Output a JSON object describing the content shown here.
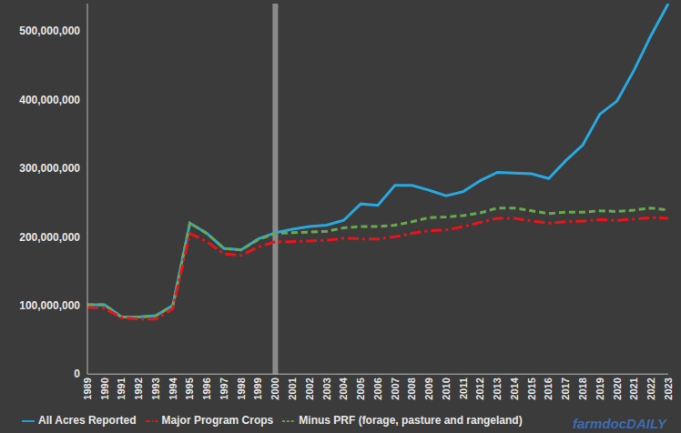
{
  "chart_data": {
    "type": "line",
    "categories": [
      "1989",
      "1990",
      "1991",
      "1992",
      "1993",
      "1994",
      "1995",
      "1996",
      "1997",
      "1998",
      "1999",
      "2000",
      "2001",
      "2002",
      "2003",
      "2004",
      "2005",
      "2006",
      "2007",
      "2008",
      "2009",
      "2010",
      "2011",
      "2012",
      "2013",
      "2014",
      "2015",
      "2016",
      "2017",
      "2018",
      "2019",
      "2020",
      "2021",
      "2022",
      "2023"
    ],
    "series": [
      {
        "name": "All Acres Reported",
        "color": "#29a8e0",
        "line_style": "solid",
        "values": [
          101000000,
          101000000,
          83000000,
          83000000,
          85000000,
          100000000,
          220000000,
          205000000,
          183000000,
          181000000,
          197000000,
          206000000,
          211000000,
          215000000,
          217000000,
          224000000,
          248000000,
          246000000,
          275000000,
          275000000,
          268000000,
          260000000,
          266000000,
          282000000,
          294000000,
          293000000,
          292000000,
          285000000,
          311000000,
          334000000,
          379000000,
          398000000,
          443000000,
          494000000,
          540000000
        ]
      },
      {
        "name": "Minus PRF (forage, pasture and rangeland)",
        "color": "#6aa84f",
        "line_style": "dashed",
        "values": [
          101000000,
          101000000,
          83000000,
          83000000,
          85000000,
          100000000,
          220000000,
          205000000,
          183000000,
          181000000,
          196000000,
          205000000,
          206000000,
          207000000,
          208000000,
          213000000,
          215000000,
          215000000,
          217000000,
          222000000,
          228000000,
          229000000,
          231000000,
          235000000,
          242000000,
          242000000,
          238000000,
          234000000,
          236000000,
          236000000,
          238000000,
          237000000,
          239000000,
          242000000,
          239000000
        ]
      },
      {
        "name": "Major Program Crops",
        "color": "#e8141a",
        "line_style": "dashdot",
        "values": [
          97000000,
          96000000,
          82000000,
          80000000,
          80000000,
          95000000,
          205000000,
          193000000,
          175000000,
          173000000,
          185000000,
          193000000,
          193000000,
          194000000,
          195000000,
          198000000,
          197000000,
          197000000,
          200000000,
          205000000,
          209000000,
          210000000,
          215000000,
          221000000,
          227000000,
          227000000,
          223000000,
          220000000,
          222000000,
          223000000,
          225000000,
          224000000,
          226000000,
          228000000,
          227000000
        ]
      }
    ],
    "ylim": [
      0,
      540000000
    ],
    "yticks": [
      0,
      {
        "value": 100000000,
        "label": "100,000,000"
      },
      {
        "value": 200000000,
        "label": "200,000,000"
      },
      {
        "value": 300000000,
        "label": "300,000,000"
      },
      {
        "value": 400000000,
        "label": "400,000,000"
      },
      {
        "value": 500000000,
        "label": "500,000,000"
      }
    ],
    "reference_line": "2000",
    "annotation": "farmdocDAILY",
    "grid": false,
    "legend": "bottom"
  }
}
